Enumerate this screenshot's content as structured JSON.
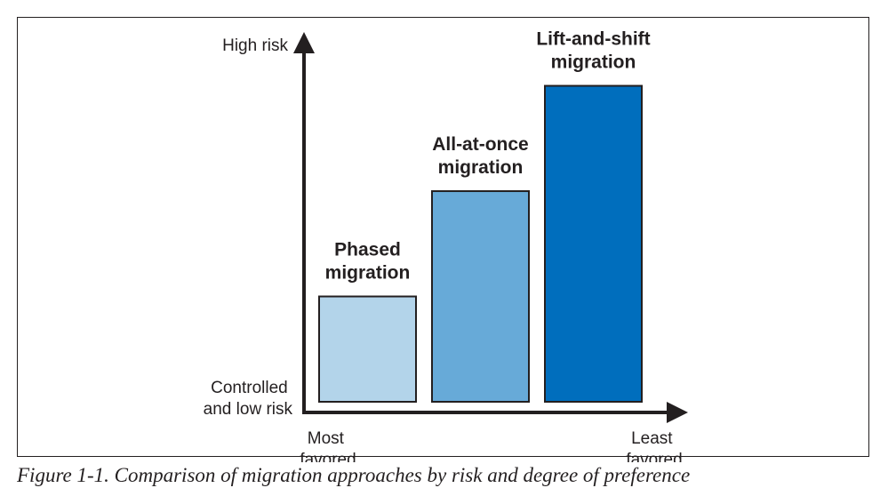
{
  "chart_data": {
    "type": "bar",
    "categories": [
      "Phased migration",
      "All-at-once migration",
      "Lift-and-shift migration"
    ],
    "category_label_lines": [
      [
        "Phased",
        "migration"
      ],
      [
        "All-at-once",
        "migration"
      ],
      [
        "Lift-and-shift",
        "migration"
      ]
    ],
    "values": [
      1,
      2,
      3
    ],
    "ylim": [
      0,
      3.3
    ],
    "y_axis": {
      "top_label": "High risk",
      "bottom_label_lines": [
        "Controlled",
        "and low risk"
      ]
    },
    "x_axis": {
      "left_label_lines": [
        "Most",
        "favored"
      ],
      "right_label_lines": [
        "Least",
        "favored"
      ]
    },
    "colors": [
      "#b3d4ea",
      "#67aad8",
      "#006ebd"
    ],
    "bar_stroke": "#231f20",
    "grid": false,
    "legend": "none"
  },
  "caption": "Figure 1-1. Comparison of migration approaches by risk and degree of preference"
}
